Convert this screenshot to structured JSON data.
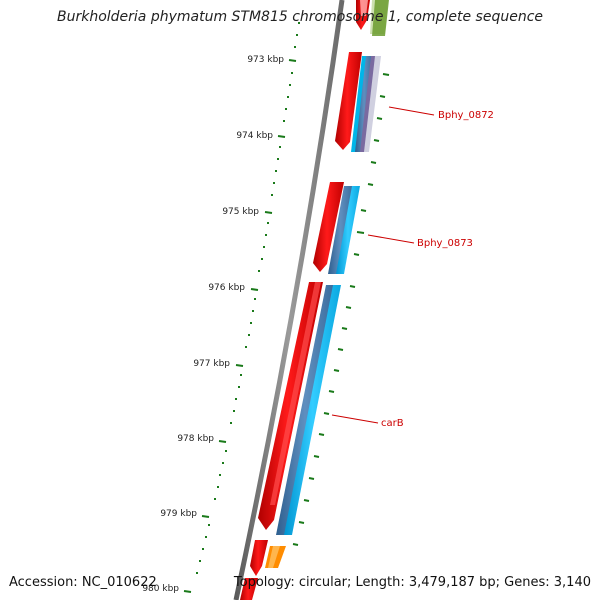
{
  "title": "Burkholderia phymatum STM815 chromosome 1, complete sequence",
  "footer": {
    "accession": "Accession: NC_010622",
    "topology": "Topology: circular; Length: 3,479,187 bp; Genes: 3,140"
  },
  "ticks": [
    {
      "kbp": 973,
      "label": "973 kbp"
    },
    {
      "kbp": 974,
      "label": "974 kbp"
    },
    {
      "kbp": 975,
      "label": "975 kbp"
    },
    {
      "kbp": 976,
      "label": "976 kbp"
    },
    {
      "kbp": 977,
      "label": "977 kbp"
    },
    {
      "kbp": 978,
      "label": "978 kbp"
    },
    {
      "kbp": 979,
      "label": "979 kbp"
    },
    {
      "kbp": 980,
      "label": "980 kbp"
    }
  ],
  "genes": [
    {
      "name": "Bphy_0872"
    },
    {
      "name": "Bphy_0873"
    },
    {
      "name": "carB"
    }
  ],
  "colors": {
    "gene": "#ff0000",
    "cds_track": "#00bfff",
    "backbone": "#808080",
    "tick": "#1a7a1a",
    "label": "#cc0000",
    "other_gene": "#ff8c00",
    "green_feature": "#6b9b2f"
  }
}
